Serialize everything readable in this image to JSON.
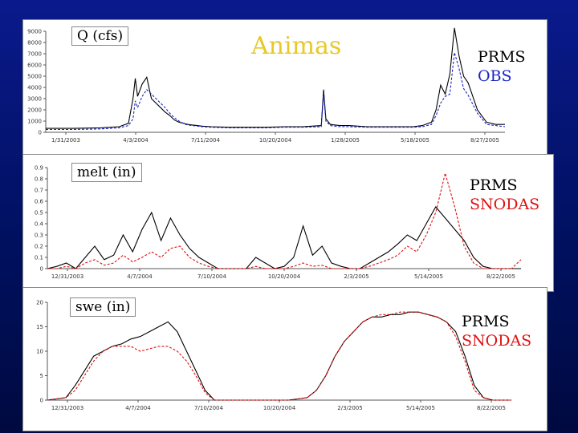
{
  "title": "Animas",
  "colors": {
    "prms": "#000000",
    "obs": "#1a24c8",
    "snodas": "#e01010",
    "title": "#e8c82a"
  },
  "chart_data": [
    {
      "type": "line",
      "label": "Q (cfs)",
      "ylim": [
        0,
        9000
      ],
      "yticks": [
        "0",
        "1000",
        "2000",
        "3000",
        "4000",
        "5000",
        "6000",
        "7000",
        "8000",
        "9000"
      ],
      "xticks": [
        "1/31/2003",
        "4/3/2004",
        "7/11/2004",
        "10/20/2004",
        "1/28/2005",
        "5/18/2005",
        "8/27/2005"
      ],
      "x": [
        0,
        6,
        12,
        16,
        18,
        19,
        19.5,
        20,
        21,
        22,
        23,
        24,
        25,
        26,
        27,
        28,
        29,
        30,
        30.5,
        31,
        32,
        33,
        34,
        36,
        40,
        44,
        48,
        52,
        56,
        60,
        60.5,
        61,
        62,
        64,
        66,
        70,
        74,
        78,
        80,
        82,
        84,
        85,
        86,
        87,
        88,
        89,
        90,
        91,
        92,
        94,
        96,
        98,
        100
      ],
      "series": [
        {
          "name": "PRMS",
          "values": [
            350,
            350,
            400,
            500,
            800,
            3000,
            4800,
            3200,
            4300,
            4900,
            3000,
            2600,
            2200,
            1800,
            1500,
            1100,
            900,
            800,
            750,
            700,
            650,
            600,
            550,
            500,
            450,
            450,
            450,
            500,
            500,
            600,
            3800,
            1200,
            700,
            600,
            600,
            500,
            500,
            500,
            500,
            600,
            900,
            2000,
            4200,
            3400,
            5200,
            9300,
            6800,
            5000,
            4400,
            2000,
            900,
            700,
            700
          ]
        },
        {
          "name": "OBS",
          "values": [
            250,
            250,
            300,
            400,
            600,
            1200,
            2800,
            2200,
            3200,
            3800,
            3400,
            3000,
            2600,
            2200,
            1700,
            1300,
            1000,
            800,
            700,
            650,
            600,
            550,
            500,
            450,
            400,
            400,
            400,
            450,
            450,
            500,
            3500,
            1000,
            600,
            500,
            500,
            450,
            450,
            450,
            450,
            500,
            700,
            1500,
            2600,
            3200,
            3400,
            7100,
            5700,
            3900,
            3300,
            1700,
            700,
            600,
            500
          ]
        }
      ]
    },
    {
      "type": "line",
      "label": "melt (in)",
      "ylim": [
        0,
        0.9
      ],
      "yticks": [
        "0",
        "0.1",
        "0.2",
        "0.3",
        "0.4",
        "0.5",
        "0.6",
        "0.7",
        "0.8",
        "0.9"
      ],
      "xticks": [
        "12/31/2003",
        "4/7/2004",
        "7/10/2004",
        "10/20/2004",
        "2/3/2005",
        "5/14/2005",
        "8/22/2005"
      ],
      "x": [
        0,
        2,
        4,
        6,
        8,
        10,
        12,
        14,
        16,
        18,
        20,
        22,
        24,
        26,
        28,
        30,
        32,
        34,
        36,
        38,
        40,
        42,
        44,
        46,
        48,
        50,
        52,
        54,
        56,
        58,
        60,
        62,
        64,
        66,
        68,
        70,
        72,
        74,
        76,
        78,
        80,
        82,
        84,
        86,
        88,
        90,
        92,
        94,
        96,
        98,
        100
      ],
      "series": [
        {
          "name": "PRMS",
          "values": [
            0,
            0.02,
            0.05,
            0,
            0.1,
            0.2,
            0.08,
            0.12,
            0.3,
            0.15,
            0.35,
            0.5,
            0.25,
            0.45,
            0.3,
            0.18,
            0.1,
            0.05,
            0,
            0,
            0,
            0,
            0.1,
            0.05,
            0,
            0.02,
            0.1,
            0.38,
            0.12,
            0.2,
            0.05,
            0.02,
            0,
            0,
            0.05,
            0.1,
            0.15,
            0.22,
            0.3,
            0.25,
            0.4,
            0.55,
            0.45,
            0.35,
            0.25,
            0.1,
            0.02,
            0,
            0,
            0,
            0
          ]
        },
        {
          "name": "SNODAS",
          "values": [
            0,
            0,
            0.02,
            0,
            0.05,
            0.08,
            0.03,
            0.05,
            0.12,
            0.06,
            0.1,
            0.15,
            0.1,
            0.18,
            0.2,
            0.1,
            0.05,
            0.02,
            0,
            0,
            0,
            0,
            0.02,
            0,
            0,
            0,
            0.02,
            0.05,
            0.02,
            0.03,
            0,
            0,
            0,
            0,
            0.02,
            0.05,
            0.08,
            0.12,
            0.2,
            0.15,
            0.3,
            0.5,
            0.85,
            0.55,
            0.2,
            0.05,
            0,
            0,
            0,
            0,
            0.08
          ]
        }
      ]
    },
    {
      "type": "line",
      "label": "swe (in)",
      "ylim": [
        0,
        20
      ],
      "yticks": [
        "0",
        "5",
        "10",
        "15",
        "20"
      ],
      "xticks": [
        "12/31/2003",
        "4/7/2004",
        "7/10/2004",
        "10/20/2004",
        "2/3/2005",
        "5/14/2005",
        "8/22/2005"
      ],
      "x": [
        0,
        4,
        6,
        8,
        10,
        12,
        14,
        16,
        18,
        20,
        22,
        24,
        26,
        28,
        30,
        32,
        34,
        36,
        40,
        44,
        48,
        52,
        56,
        58,
        60,
        62,
        64,
        66,
        68,
        70,
        72,
        74,
        76,
        78,
        80,
        82,
        84,
        86,
        88,
        90,
        92,
        94,
        96,
        100
      ],
      "series": [
        {
          "name": "PRMS",
          "values": [
            0,
            0.5,
            3,
            6,
            9,
            10,
            11,
            11.5,
            12.5,
            13,
            14,
            15,
            16,
            14,
            10,
            6,
            2,
            0,
            0,
            0,
            0,
            0,
            0.5,
            2,
            5,
            9,
            12,
            14,
            16,
            17,
            17,
            17.5,
            17.5,
            18,
            18,
            17.5,
            17,
            16,
            14,
            9,
            3,
            0.5,
            0,
            0
          ]
        },
        {
          "name": "SNODAS",
          "values": [
            0,
            0.5,
            2,
            5,
            8,
            10,
            11,
            11,
            11,
            10,
            10.5,
            11,
            11,
            10,
            8,
            5,
            1.5,
            0,
            0,
            0,
            0,
            0,
            0.5,
            2,
            5,
            9,
            12,
            14,
            16,
            17,
            17.5,
            17.5,
            18,
            18,
            18,
            17.5,
            17,
            16,
            13,
            8,
            2,
            0.5,
            0,
            0
          ]
        }
      ]
    }
  ],
  "legends": [
    {
      "lines": [
        {
          "text": "PRMS",
          "color": "#000000"
        },
        {
          "text": "OBS",
          "color": "#1a24c8"
        }
      ]
    },
    {
      "lines": [
        {
          "text": "PRMS",
          "color": "#000000"
        },
        {
          "text": "SNODAS",
          "color": "#e01010"
        }
      ]
    },
    {
      "lines": [
        {
          "text": "PRMS",
          "color": "#000000"
        },
        {
          "text": "SNODAS",
          "color": "#e01010"
        }
      ]
    }
  ]
}
